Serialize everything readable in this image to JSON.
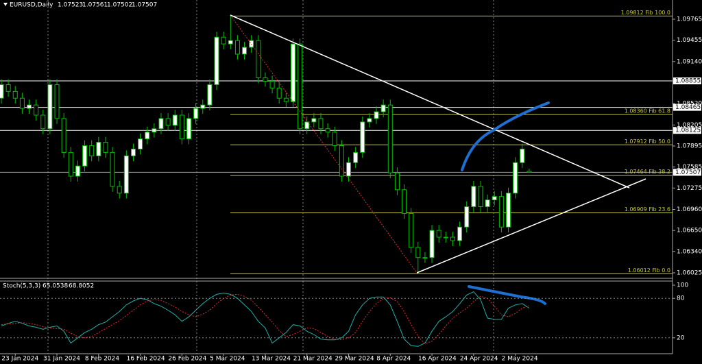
{
  "chart_data": [
    {
      "type": "candlestick",
      "title": "EURUSD,Daily",
      "categories": [
        null,
        null,
        "23 Jan 2024",
        null,
        null,
        null,
        null,
        null,
        "31 Jan 2024",
        null,
        null,
        null,
        null,
        null,
        "8 Feb 2024",
        null,
        null,
        null,
        null,
        null,
        "16 Feb 2024",
        null,
        null,
        null,
        null,
        null,
        "26 Feb 2024",
        null,
        null,
        null,
        null,
        null,
        "5 Mar 2024",
        null,
        null,
        null,
        null,
        null,
        "13 Mar 2024",
        null,
        null,
        null,
        null,
        null,
        "21 Mar 2024",
        null,
        null,
        null,
        null,
        null,
        "29 Mar 2024",
        null,
        null,
        null,
        null,
        null,
        "8 Apr 2024",
        null,
        null,
        null,
        null,
        null,
        "16 Apr 2024",
        null,
        null,
        null,
        null,
        null,
        "24 Apr 2024",
        null,
        null,
        null,
        null,
        null,
        "2 May 2024",
        null,
        null
      ],
      "open": [
        1.086,
        1.088,
        1.087,
        1.086,
        1.0845,
        1.085,
        1.0835,
        1.0815,
        1.088,
        1.083,
        1.078,
        1.0745,
        1.076,
        1.079,
        1.0775,
        1.0795,
        1.078,
        1.073,
        1.072,
        1.0775,
        1.0785,
        1.08,
        1.081,
        1.0815,
        1.083,
        1.082,
        1.0835,
        1.08,
        1.083,
        1.0845,
        1.085,
        1.088,
        1.095,
        1.094,
        1.0945,
        1.0925,
        1.0935,
        1.0945,
        1.089,
        1.0885,
        1.0875,
        1.086,
        1.0855,
        1.094,
        1.0815,
        1.0825,
        1.083,
        1.0815,
        1.081,
        1.079,
        1.0745,
        1.0765,
        1.078,
        1.0825,
        1.083,
        1.084,
        1.085,
        1.075,
        1.0725,
        1.069,
        1.064,
        1.0625,
        1.0625,
        1.0665,
        1.0655,
        1.0655,
        1.065,
        1.067,
        1.07,
        1.073,
        1.07,
        1.071,
        1.0715,
        1.067,
        1.072,
        1.0765,
        1.07523
      ],
      "high": [
        1.0888,
        1.0888,
        1.0878,
        1.0868,
        1.0858,
        1.0858,
        1.0843,
        1.0888,
        1.0888,
        1.0838,
        1.0788,
        1.0768,
        1.0798,
        1.0798,
        1.0803,
        1.0803,
        1.0788,
        1.0738,
        1.0783,
        1.0793,
        1.0808,
        1.0818,
        1.0823,
        1.0838,
        1.0838,
        1.0843,
        1.0843,
        1.0838,
        1.0853,
        1.0858,
        1.0888,
        1.0958,
        1.0958,
        1.0981,
        1.0953,
        1.0943,
        1.0953,
        1.0953,
        1.0898,
        1.0893,
        1.0883,
        1.0868,
        1.0948,
        1.0948,
        1.0833,
        1.0838,
        1.0838,
        1.0823,
        1.0818,
        1.0798,
        1.0773,
        1.0788,
        1.0833,
        1.0838,
        1.0848,
        1.0858,
        1.0858,
        1.0758,
        1.0733,
        1.0698,
        1.0648,
        1.0633,
        1.0673,
        1.0673,
        1.0663,
        1.0663,
        1.0678,
        1.0708,
        1.0738,
        1.0738,
        1.0718,
        1.0723,
        1.0723,
        1.0728,
        1.0773,
        1.0793,
        1.07561
      ],
      "low": [
        1.0852,
        1.0862,
        1.0852,
        1.0837,
        1.0837,
        1.0827,
        1.0807,
        1.0807,
        1.0822,
        1.0772,
        1.0737,
        1.0737,
        1.0752,
        1.0767,
        1.0767,
        1.0772,
        1.0722,
        1.0712,
        1.0712,
        1.0767,
        1.0777,
        1.0792,
        1.0802,
        1.0807,
        1.0812,
        1.0812,
        1.0792,
        1.0792,
        1.0822,
        1.0837,
        1.0842,
        1.0872,
        1.0932,
        1.0932,
        1.0917,
        1.0917,
        1.0927,
        1.0882,
        1.0877,
        1.0867,
        1.0852,
        1.0847,
        1.0847,
        1.0807,
        1.0807,
        1.0817,
        1.0807,
        1.0802,
        1.0782,
        1.0737,
        1.0737,
        1.0757,
        1.0772,
        1.0817,
        1.0822,
        1.0832,
        1.0742,
        1.0717,
        1.0682,
        1.0632,
        1.0601,
        1.0617,
        1.0617,
        1.0647,
        1.0647,
        1.0642,
        1.0642,
        1.0662,
        1.0692,
        1.0692,
        1.0692,
        1.0702,
        1.0662,
        1.0662,
        1.0712,
        1.0757,
        1.07502
      ],
      "close": [
        1.088,
        1.087,
        1.086,
        1.0845,
        1.085,
        1.0835,
        1.0815,
        1.088,
        1.083,
        1.078,
        1.0745,
        1.076,
        1.079,
        1.0775,
        1.0795,
        1.078,
        1.073,
        1.072,
        1.0775,
        1.0785,
        1.08,
        1.081,
        1.0815,
        1.083,
        1.082,
        1.0835,
        1.08,
        1.083,
        1.0845,
        1.085,
        1.088,
        1.095,
        1.094,
        1.0945,
        1.0925,
        1.0935,
        1.0945,
        1.089,
        1.0885,
        1.0875,
        1.086,
        1.0855,
        1.094,
        1.0815,
        1.0825,
        1.083,
        1.0815,
        1.081,
        1.079,
        1.0745,
        1.0765,
        1.078,
        1.0825,
        1.083,
        1.084,
        1.085,
        1.075,
        1.0725,
        1.069,
        1.064,
        1.0625,
        1.0625,
        1.0665,
        1.0655,
        1.0655,
        1.065,
        1.067,
        1.07,
        1.073,
        1.07,
        1.071,
        1.0715,
        1.067,
        1.072,
        1.0765,
        1.0785,
        1.07507
      ],
      "up_color": "#ffffff",
      "down_color": "#000000",
      "wick_color": "#00c000",
      "ylim": [
        1.05954,
        1.10048
      ],
      "yticks": [
        1.09765,
        1.09455,
        {
          "value": 1.0914,
          "label": "1.09140"
        },
        {
          "value": 1.0852,
          "label": "1.08520"
        },
        1.08205,
        1.07895,
        1.07585,
        1.07275,
        {
          "value": 1.0696,
          "label": "1.06960"
        },
        {
          "value": 1.0665,
          "label": "1.06650"
        },
        {
          "value": 1.0634,
          "label": "1.06340"
        },
        1.06025
      ],
      "fib_levels": [
        {
          "value": 1.09812,
          "label": "1.09812 Fib 100.0"
        },
        {
          "value": 1.0836,
          "label": "1.08360 Fib 61.8"
        },
        {
          "value": 1.07912,
          "label": "1.07912 Fib 50.0"
        },
        {
          "value": 1.07464,
          "label": "1.07464 Fib 38.2"
        },
        {
          "value": 1.06909,
          "label": "1.06909 Fib 23.6"
        },
        {
          "value": 1.06012,
          "label": "1.06012 Fib 0.0"
        }
      ],
      "fib_color": "#c8c832",
      "price_lines": [
        1.08855,
        1.08465,
        1.08125
      ],
      "price_line_color": "#ffffff"
    },
    {
      "type": "line",
      "title": "Stoch(5,3,3)",
      "ylim": [
        0,
        100
      ],
      "yticks": [
        100,
        80,
        20
      ],
      "series": [
        {
          "color": "#20b2aa",
          "values": [
            38,
            42,
            45,
            42,
            38,
            36,
            33,
            36,
            38,
            30,
            12,
            20,
            28,
            33,
            40,
            44,
            52,
            60,
            70,
            76,
            80,
            78,
            72,
            68,
            62,
            55,
            45,
            52,
            62,
            72,
            80,
            86,
            88,
            86,
            80,
            70,
            60,
            45,
            35,
            12,
            20,
            28,
            40,
            38,
            30,
            25,
            18,
            17,
            17,
            20,
            30,
            55,
            70,
            80,
            82,
            82,
            70,
            45,
            18,
            8,
            7,
            12,
            30,
            45,
            52,
            60,
            72,
            85,
            90,
            78,
            50,
            48,
            48,
            65,
            70,
            72,
            65.0538
          ]
        },
        {
          "color": "#e03030",
          "dashed": true,
          "values": [
            40,
            41,
            42,
            43,
            42,
            40,
            37,
            35,
            34,
            33,
            27,
            22,
            20,
            22,
            28,
            34,
            40,
            46,
            54,
            62,
            70,
            76,
            78,
            77,
            72,
            67,
            60,
            55,
            52,
            56,
            62,
            72,
            80,
            85,
            86,
            83,
            77,
            67,
            55,
            44,
            31,
            22,
            25,
            30,
            35,
            34,
            28,
            22,
            18,
            17,
            20,
            28,
            45,
            60,
            72,
            80,
            81,
            75,
            60,
            40,
            22,
            11,
            15,
            25,
            38,
            50,
            58,
            65,
            75,
            83,
            80,
            68,
            55,
            52,
            57,
            65,
            68.8052
          ]
        }
      ]
    }
  ]
}
